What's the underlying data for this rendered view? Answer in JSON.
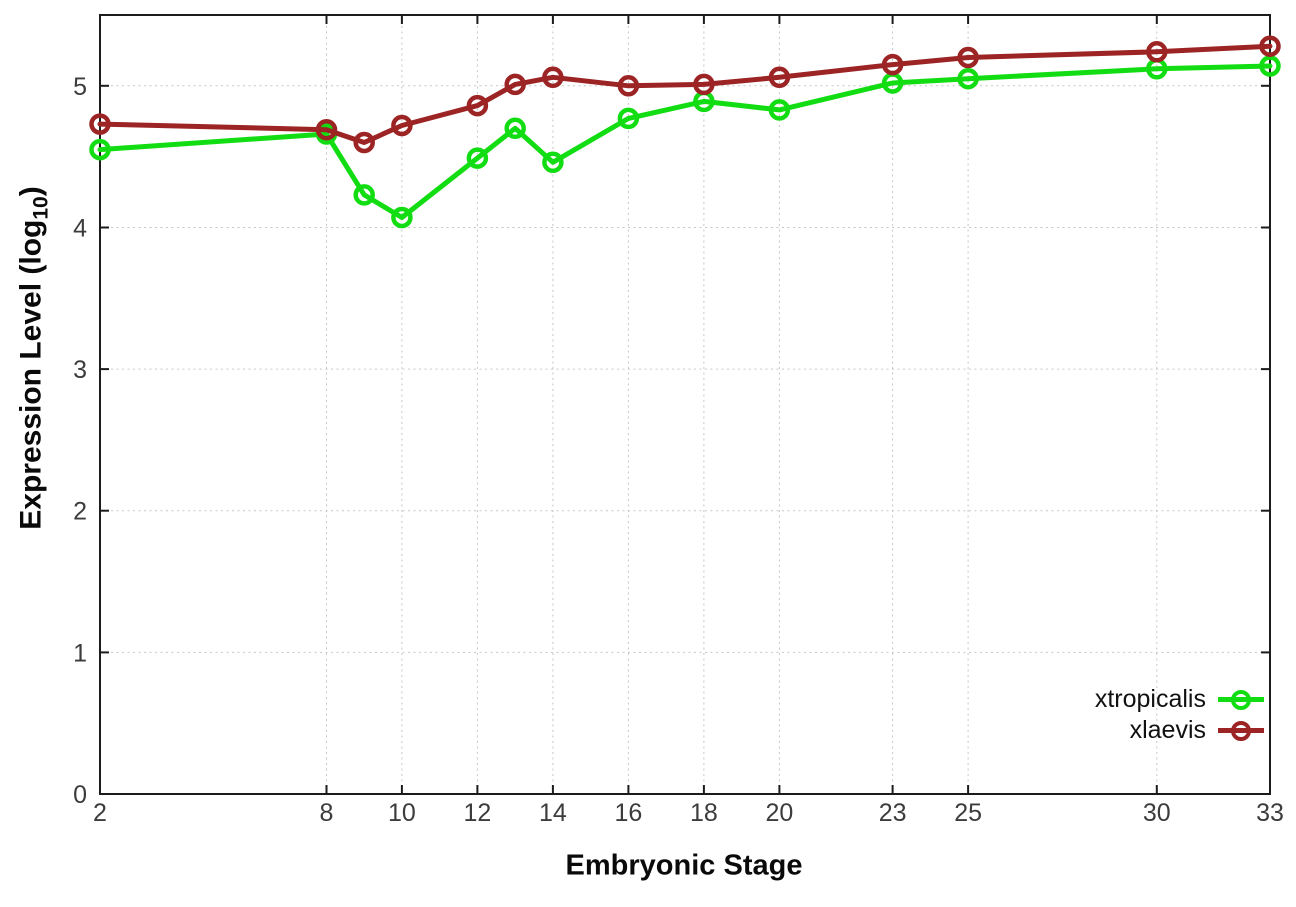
{
  "chart_data": {
    "type": "line",
    "title": "",
    "xlabel": "Embryonic Stage",
    "ylabel_prefix": "Expression Level (log",
    "ylabel_subscript": "10",
    "ylabel_suffix": ")",
    "xlim": [
      2,
      33
    ],
    "ylim": [
      0,
      5.5
    ],
    "x_ticks": [
      2,
      8,
      10,
      12,
      14,
      16,
      18,
      20,
      23,
      25,
      30,
      33
    ],
    "y_ticks": [
      0,
      1,
      2,
      3,
      4,
      5
    ],
    "grid": true,
    "legend_position": "inside-bottom-right",
    "x": [
      2,
      8,
      9,
      10,
      12,
      13,
      14,
      16,
      18,
      20,
      23,
      25,
      30,
      33
    ],
    "series": [
      {
        "name": "xtropicalis",
        "color": "#12dd12",
        "values": [
          4.55,
          4.66,
          4.23,
          4.07,
          4.49,
          4.7,
          4.46,
          4.77,
          4.89,
          4.83,
          5.02,
          5.05,
          5.12,
          5.14
        ]
      },
      {
        "name": "xlaevis",
        "color": "#9c2424",
        "values": [
          4.73,
          4.69,
          4.6,
          4.72,
          4.86,
          5.01,
          5.06,
          5.0,
          5.01,
          5.06,
          5.15,
          5.2,
          5.24,
          5.28
        ]
      }
    ]
  }
}
